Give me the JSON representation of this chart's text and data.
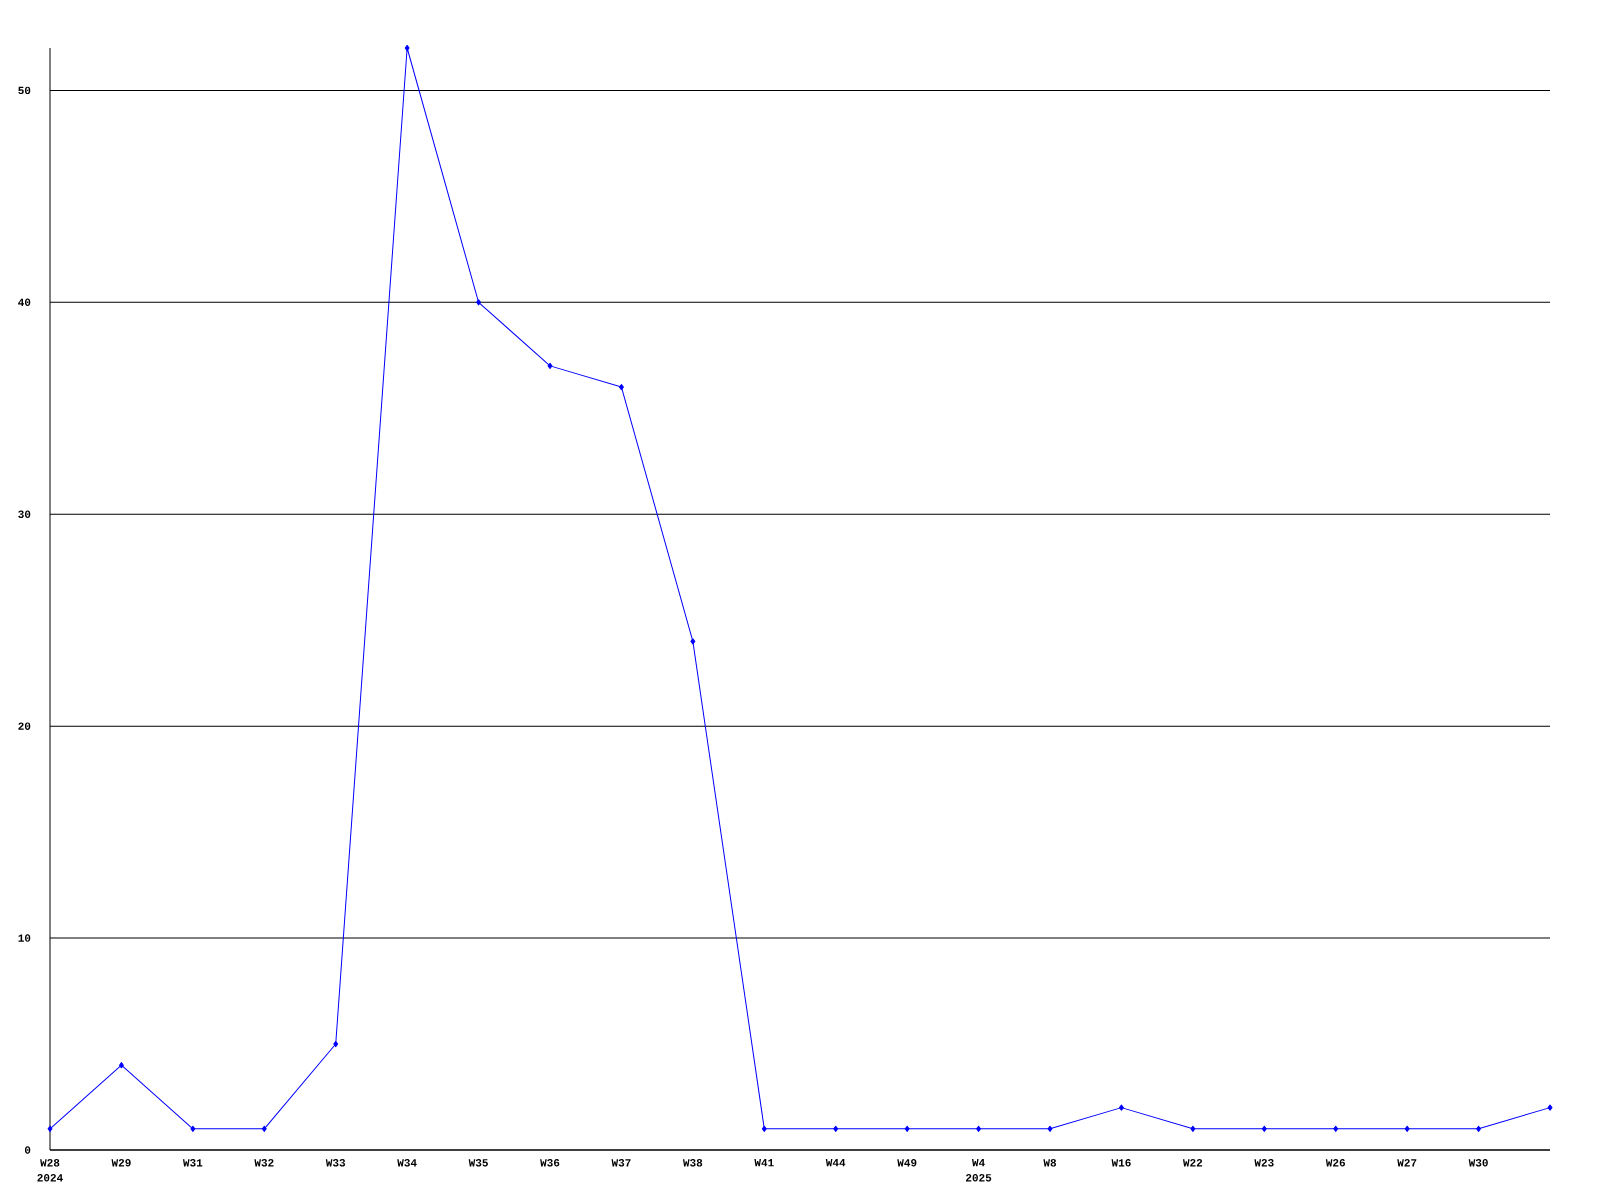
{
  "chart_data": {
    "type": "line",
    "categories": [
      "W28",
      "W29",
      "W31",
      "W32",
      "W33",
      "W34",
      "W35",
      "W36",
      "W37",
      "W38",
      "W41",
      "W44",
      "W49",
      "W4",
      "W8",
      "W16",
      "W22",
      "W23",
      "W26",
      "W27",
      "W30",
      null
    ],
    "series": [
      {
        "color": "#0000ff",
        "values": [
          1,
          4,
          1,
          1,
          5,
          52,
          40,
          37,
          36,
          24,
          1,
          1,
          1,
          1,
          1,
          2,
          1,
          1,
          1,
          1,
          1,
          2
        ]
      }
    ],
    "ylim": [
      0,
      52
    ],
    "yticks": [
      0,
      10,
      20,
      30,
      40,
      50
    ],
    "grid": "y",
    "marker": "diamond",
    "line_style": "solid",
    "annotations": [
      "2024",
      "2025"
    ]
  }
}
